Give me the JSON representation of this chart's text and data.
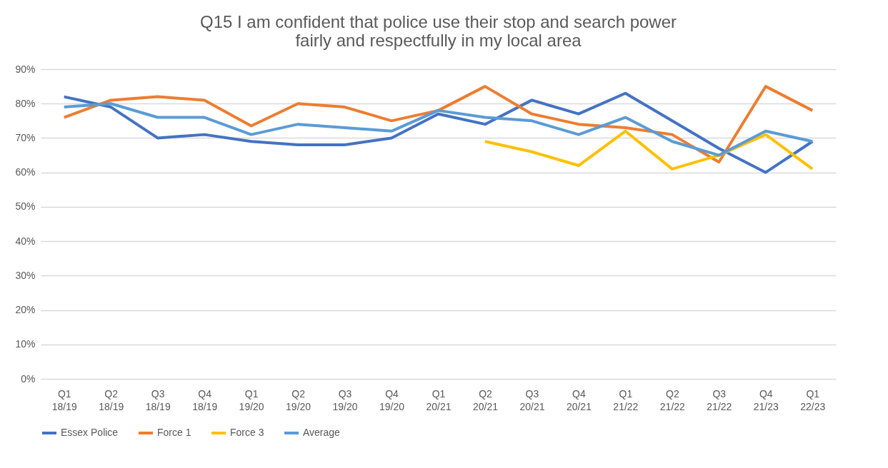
{
  "chart_data": {
    "type": "line",
    "title": "Q15 I am confident that police use their stop and search power fairly and respectfully in my local area",
    "categories": [
      "Q1 18/19",
      "Q2 18/19",
      "Q3 18/19",
      "Q4 18/19",
      "Q1 19/20",
      "Q2 19/20",
      "Q3 19/20",
      "Q4 19/20",
      "Q1 20/21",
      "Q2 20/21",
      "Q3 20/21",
      "Q4 20/21",
      "Q1 21/22",
      "Q2 21/22",
      "Q3 21/22",
      "Q4 21/23",
      "Q1 22/23"
    ],
    "series": [
      {
        "name": "Essex Police",
        "color": "#4472c4",
        "values": [
          82,
          79,
          70,
          71,
          69,
          68,
          68,
          70,
          77,
          74,
          81,
          77,
          83,
          75,
          67,
          60,
          69
        ]
      },
      {
        "name": "Force 1",
        "color": "#ed7d31",
        "values": [
          76,
          81,
          82,
          81,
          73.5,
          80,
          79,
          75,
          78,
          85,
          77,
          74,
          73,
          71,
          63,
          85,
          78
        ]
      },
      {
        "name": "Force 3",
        "color": "#ffc000",
        "values": [
          null,
          null,
          null,
          null,
          null,
          null,
          null,
          null,
          null,
          69,
          66,
          62,
          72,
          61,
          65,
          71,
          61
        ]
      },
      {
        "name": "Average",
        "color": "#5b9bd5",
        "values": [
          79,
          80,
          76,
          76,
          71,
          74,
          73,
          72,
          78,
          76,
          75,
          71,
          76,
          69,
          65,
          72,
          69
        ]
      }
    ],
    "ylim": [
      0,
      90
    ],
    "yticks": [
      {
        "value": 0,
        "label": "0%"
      },
      {
        "value": 10,
        "label": "10%"
      },
      {
        "value": 20,
        "label": "20%"
      },
      {
        "value": 30,
        "label": "30%"
      },
      {
        "value": 40,
        "label": "40%"
      },
      {
        "value": 50,
        "label": "50%"
      },
      {
        "value": 60,
        "label": "60%"
      },
      {
        "value": 70,
        "label": "70%"
      },
      {
        "value": 80,
        "label": "80%"
      },
      {
        "value": 90,
        "label": "90%"
      }
    ],
    "grid": "y",
    "legend": "bottom",
    "marker": "none",
    "line_style": "solid"
  }
}
